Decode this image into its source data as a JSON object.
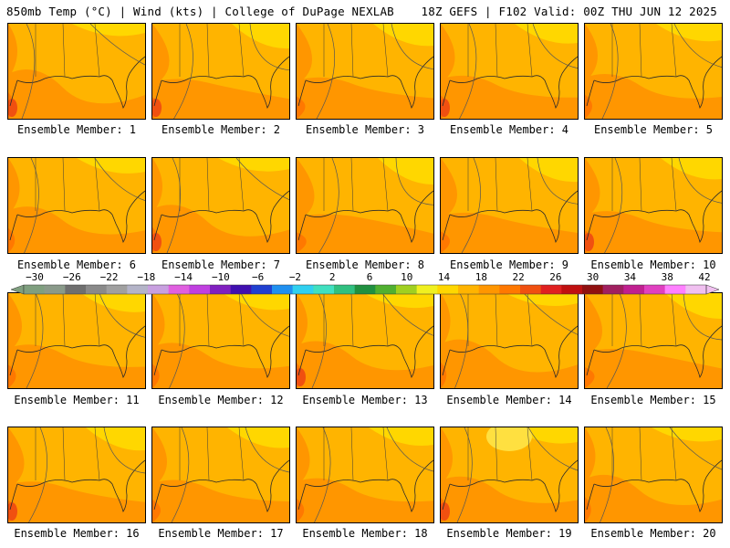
{
  "header": {
    "left": "850mb Temp (°C) | Wind (kts) | College of DuPage NEXLAB",
    "right": "18Z GEFS | F102 Valid: 00Z THU JUN 12 2025"
  },
  "colorbar": {
    "labels": [
      "−30",
      "−26",
      "−22",
      "−18",
      "−14",
      "−10",
      "−6",
      "−2",
      "2",
      "6",
      "10",
      "14",
      "18",
      "22",
      "26",
      "30",
      "34",
      "38",
      "42"
    ],
    "colors": [
      "#7f9f7f",
      "#8a9a8a",
      "#6f6f6f",
      "#8a8a8a",
      "#a0a0a0",
      "#b4b4c8",
      "#c8a0e0",
      "#e060e0",
      "#c040e0",
      "#8020c0",
      "#4010b0",
      "#2040d0",
      "#2090f0",
      "#30d0f0",
      "#40e0c0",
      "#30c080",
      "#209040",
      "#50b030",
      "#a0d020",
      "#f0f020",
      "#ffd700",
      "#ffb400",
      "#ff9600",
      "#ff7800",
      "#f05010",
      "#e02020",
      "#c01010",
      "#901010",
      "#a02060",
      "#c02090",
      "#e040c0",
      "#ff80ff",
      "#f0c0f0"
    ]
  },
  "members": [
    {
      "label": "Ensemble Member: 1"
    },
    {
      "label": "Ensemble Member: 2"
    },
    {
      "label": "Ensemble Member: 3"
    },
    {
      "label": "Ensemble Member: 4"
    },
    {
      "label": "Ensemble Member: 5"
    },
    {
      "label": "Ensemble Member: 6"
    },
    {
      "label": "Ensemble Member: 7"
    },
    {
      "label": "Ensemble Member: 8"
    },
    {
      "label": "Ensemble Member: 9"
    },
    {
      "label": "Ensemble Member: 10"
    },
    {
      "label": "Ensemble Member: 11"
    },
    {
      "label": "Ensemble Member: 12"
    },
    {
      "label": "Ensemble Member: 13"
    },
    {
      "label": "Ensemble Member: 14"
    },
    {
      "label": "Ensemble Member: 15"
    },
    {
      "label": "Ensemble Member: 16"
    },
    {
      "label": "Ensemble Member: 17"
    },
    {
      "label": "Ensemble Member: 18"
    },
    {
      "label": "Ensemble Member: 19"
    },
    {
      "label": "Ensemble Member: 20"
    }
  ],
  "map_colors": {
    "base": "#ffb400",
    "warm": "#ff9600",
    "hot": "#ff7800",
    "hottest": "#f05010",
    "cool": "#ffd700"
  }
}
